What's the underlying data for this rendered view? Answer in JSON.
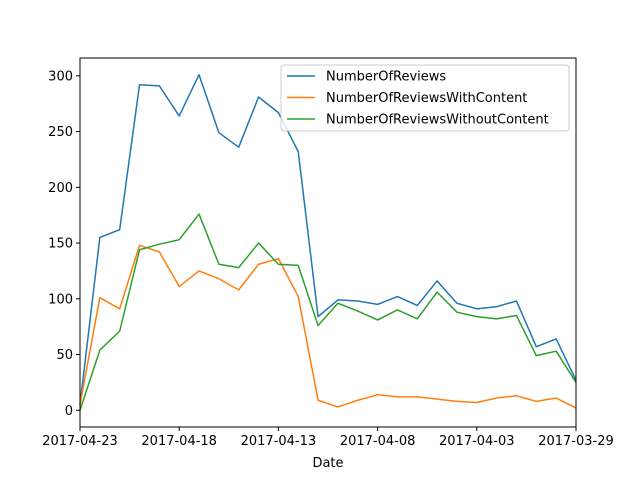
{
  "chart_data": {
    "type": "line",
    "title": "",
    "xlabel": "Date",
    "ylabel": "",
    "x": [
      "2017-04-23",
      "2017-04-22",
      "2017-04-21",
      "2017-04-20",
      "2017-04-19",
      "2017-04-18",
      "2017-04-17",
      "2017-04-16",
      "2017-04-15",
      "2017-04-14",
      "2017-04-13",
      "2017-04-12",
      "2017-04-11",
      "2017-04-10",
      "2017-04-09",
      "2017-04-08",
      "2017-04-07",
      "2017-04-06",
      "2017-04-05",
      "2017-04-04",
      "2017-04-03",
      "2017-04-02",
      "2017-04-01",
      "2017-03-31",
      "2017-03-30",
      "2017-03-29"
    ],
    "x_tick_labels": [
      "2017-04-23",
      "2017-04-18",
      "2017-04-13",
      "2017-04-08",
      "2017-04-03",
      "2017-03-29"
    ],
    "y_ticks": [
      0,
      50,
      100,
      150,
      200,
      250,
      300
    ],
    "ylim": [
      -15,
      316
    ],
    "grid": false,
    "legend_position": "top-right",
    "series": [
      {
        "name": "NumberOfReviews",
        "color": "#1f77b4",
        "values": [
          5,
          155,
          162,
          292,
          291,
          264,
          301,
          249,
          236,
          281,
          267,
          232,
          84,
          99,
          98,
          95,
          102,
          94,
          116,
          96,
          91,
          93,
          98,
          57,
          64,
          27
        ]
      },
      {
        "name": "NumberOfReviewsWithContent",
        "color": "#ff7f0e",
        "values": [
          5,
          101,
          91,
          148,
          142,
          111,
          125,
          118,
          108,
          131,
          136,
          102,
          9,
          3,
          9,
          14,
          12,
          12,
          10,
          8,
          7,
          11,
          13,
          8,
          11,
          2
        ]
      },
      {
        "name": "NumberOfReviewsWithoutContent",
        "color": "#2ca02c",
        "values": [
          0,
          54,
          71,
          144,
          149,
          153,
          176,
          131,
          128,
          150,
          131,
          130,
          76,
          96,
          89,
          81,
          90,
          82,
          106,
          88,
          84,
          82,
          85,
          49,
          53,
          25
        ]
      }
    ]
  }
}
